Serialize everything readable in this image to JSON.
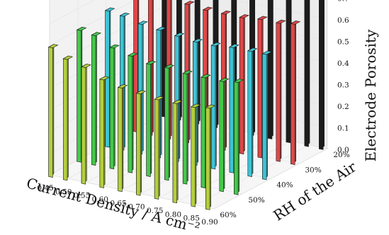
{
  "chart_data": {
    "type": "bar",
    "subtype": "3d-bar",
    "title": "",
    "xlabel": "Current Density / A cm⁻²",
    "ylabel": "RH of the Air",
    "zlabel": "Electrode Porosity",
    "x_ticks": [
      "0.45",
      "0.50",
      "0.55",
      "0.60",
      "0.65",
      "0.70",
      "0.75",
      "0.80",
      "0.85",
      "0.90"
    ],
    "y_ticks": [
      "20%",
      "30%",
      "40%",
      "50%",
      "60%"
    ],
    "z_ticks": [
      "0.0",
      "0.1",
      "0.2",
      "0.3",
      "0.4",
      "0.5",
      "0.6",
      "0.7"
    ],
    "xlim": [
      0.45,
      0.9
    ],
    "ylim": [
      20,
      60
    ],
    "zlim": [
      0.0,
      0.75
    ],
    "grid": true,
    "series": [
      {
        "rh": 20,
        "color": "#1c1c1c",
        "x": [
          0.46,
          0.5,
          0.55,
          0.6,
          0.65,
          0.7,
          0.75,
          0.8,
          0.85,
          0.89
        ],
        "values": [
          0.7,
          0.72,
          0.71,
          0.71,
          0.7,
          0.69,
          0.69,
          0.7,
          0.7,
          0.7
        ]
      },
      {
        "rh": 30,
        "color": "#dd4848",
        "x": [
          0.46,
          0.5,
          0.55,
          0.6,
          0.65,
          0.7,
          0.75,
          0.8,
          0.85,
          0.89
        ],
        "values": [
          0.65,
          0.66,
          0.65,
          0.64,
          0.63,
          0.63,
          0.63,
          0.64,
          0.64,
          0.65
        ]
      },
      {
        "rh": 40,
        "color": "#3fc3d4",
        "x": [
          0.46,
          0.5,
          0.55,
          0.6,
          0.65,
          0.7,
          0.75,
          0.8,
          0.85,
          0.89
        ],
        "values": [
          0.63,
          0.62,
          0.6,
          0.59,
          0.58,
          0.57,
          0.57,
          0.58,
          0.58,
          0.58
        ]
      },
      {
        "rh": 50,
        "color": "#45c84a",
        "x": [
          0.46,
          0.5,
          0.55,
          0.6,
          0.65,
          0.7,
          0.75,
          0.8,
          0.85,
          0.89
        ],
        "values": [
          0.61,
          0.6,
          0.56,
          0.54,
          0.52,
          0.52,
          0.51,
          0.51,
          0.51,
          0.52
        ]
      },
      {
        "rh": 60,
        "color": "#b3cf3d",
        "x": [
          0.46,
          0.5,
          0.55,
          0.6,
          0.65,
          0.7,
          0.75,
          0.8,
          0.85,
          0.89
        ],
        "values": [
          0.6,
          0.56,
          0.54,
          0.5,
          0.48,
          0.47,
          0.46,
          0.46,
          0.46,
          0.47
        ]
      }
    ]
  }
}
